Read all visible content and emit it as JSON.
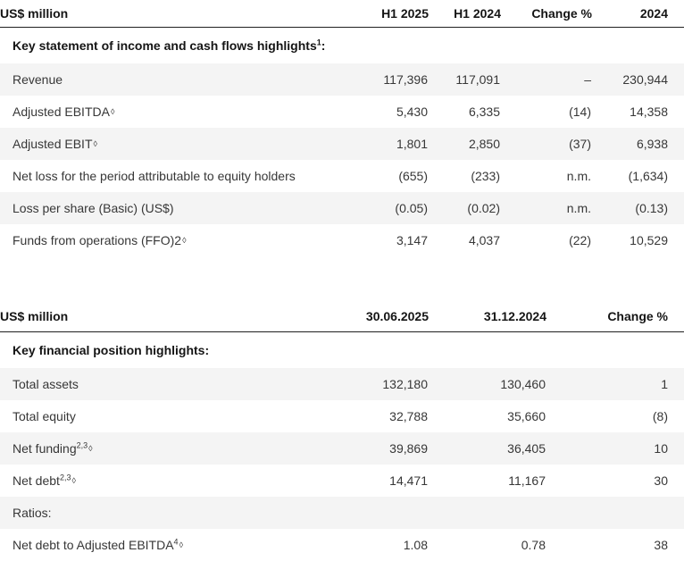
{
  "colors": {
    "stripe": "#f4f4f4",
    "header_rule": "#1f1f1f",
    "text": "#373737",
    "bold_text": "#151515"
  },
  "table1": {
    "unit_label": "US$ million",
    "columns": [
      "H1 2025",
      "H1 2024",
      "Change %",
      "2024"
    ],
    "section": {
      "text": "Key statement of income and cash flows highlights",
      "sup": "1",
      "suffix": ":"
    },
    "rows": [
      {
        "label": "Revenue",
        "sup": "",
        "diamond": "",
        "values": [
          "117,396",
          "117,091",
          "–",
          "230,944"
        ]
      },
      {
        "label": "Adjusted EBITDA",
        "sup": "",
        "diamond": "◊",
        "values": [
          "5,430",
          "6,335",
          "(14)",
          "14,358"
        ]
      },
      {
        "label": "Adjusted EBIT",
        "sup": "",
        "diamond": "◊",
        "values": [
          "1,801",
          "2,850",
          "(37)",
          "6,938"
        ]
      },
      {
        "label": "Net loss for the period attributable to equity holders",
        "sup": "",
        "diamond": "",
        "values": [
          "(655)",
          "(233)",
          "n.m.",
          "(1,634)"
        ]
      },
      {
        "label": "Loss per share (Basic) (US$)",
        "sup": "",
        "diamond": "",
        "values": [
          "(0.05)",
          "(0.02)",
          "n.m.",
          "(0.13)"
        ]
      },
      {
        "label": "Funds from operations (FFO)2",
        "sup": "",
        "diamond": "◊",
        "values": [
          "3,147",
          "4,037",
          "(22)",
          "10,529"
        ]
      }
    ]
  },
  "table2": {
    "unit_label": "US$ million",
    "columns": [
      "30.06.2025",
      "31.12.2024",
      "Change %"
    ],
    "section": {
      "text": "Key financial position highlights:",
      "sup": "",
      "suffix": ""
    },
    "rows": [
      {
        "label": "Total assets",
        "sup": "",
        "diamond": "",
        "values": [
          "132,180",
          "130,460",
          "1"
        ]
      },
      {
        "label": "Total equity",
        "sup": "",
        "diamond": "",
        "values": [
          "32,788",
          "35,660",
          "(8)"
        ]
      },
      {
        "label": "Net funding",
        "sup": "2,3",
        "diamond": "◊",
        "values": [
          "39,869",
          "36,405",
          "10"
        ]
      },
      {
        "label": "Net debt",
        "sup": "2,3",
        "diamond": "◊",
        "values": [
          "14,471",
          "11,167",
          "30"
        ]
      },
      {
        "label": "Ratios:",
        "sup": "",
        "diamond": "",
        "values": [
          "",
          "",
          ""
        ]
      },
      {
        "label": "Net debt to Adjusted EBITDA",
        "sup": "4",
        "diamond": "◊",
        "values": [
          "1.08",
          "0.78",
          "38"
        ]
      }
    ]
  }
}
